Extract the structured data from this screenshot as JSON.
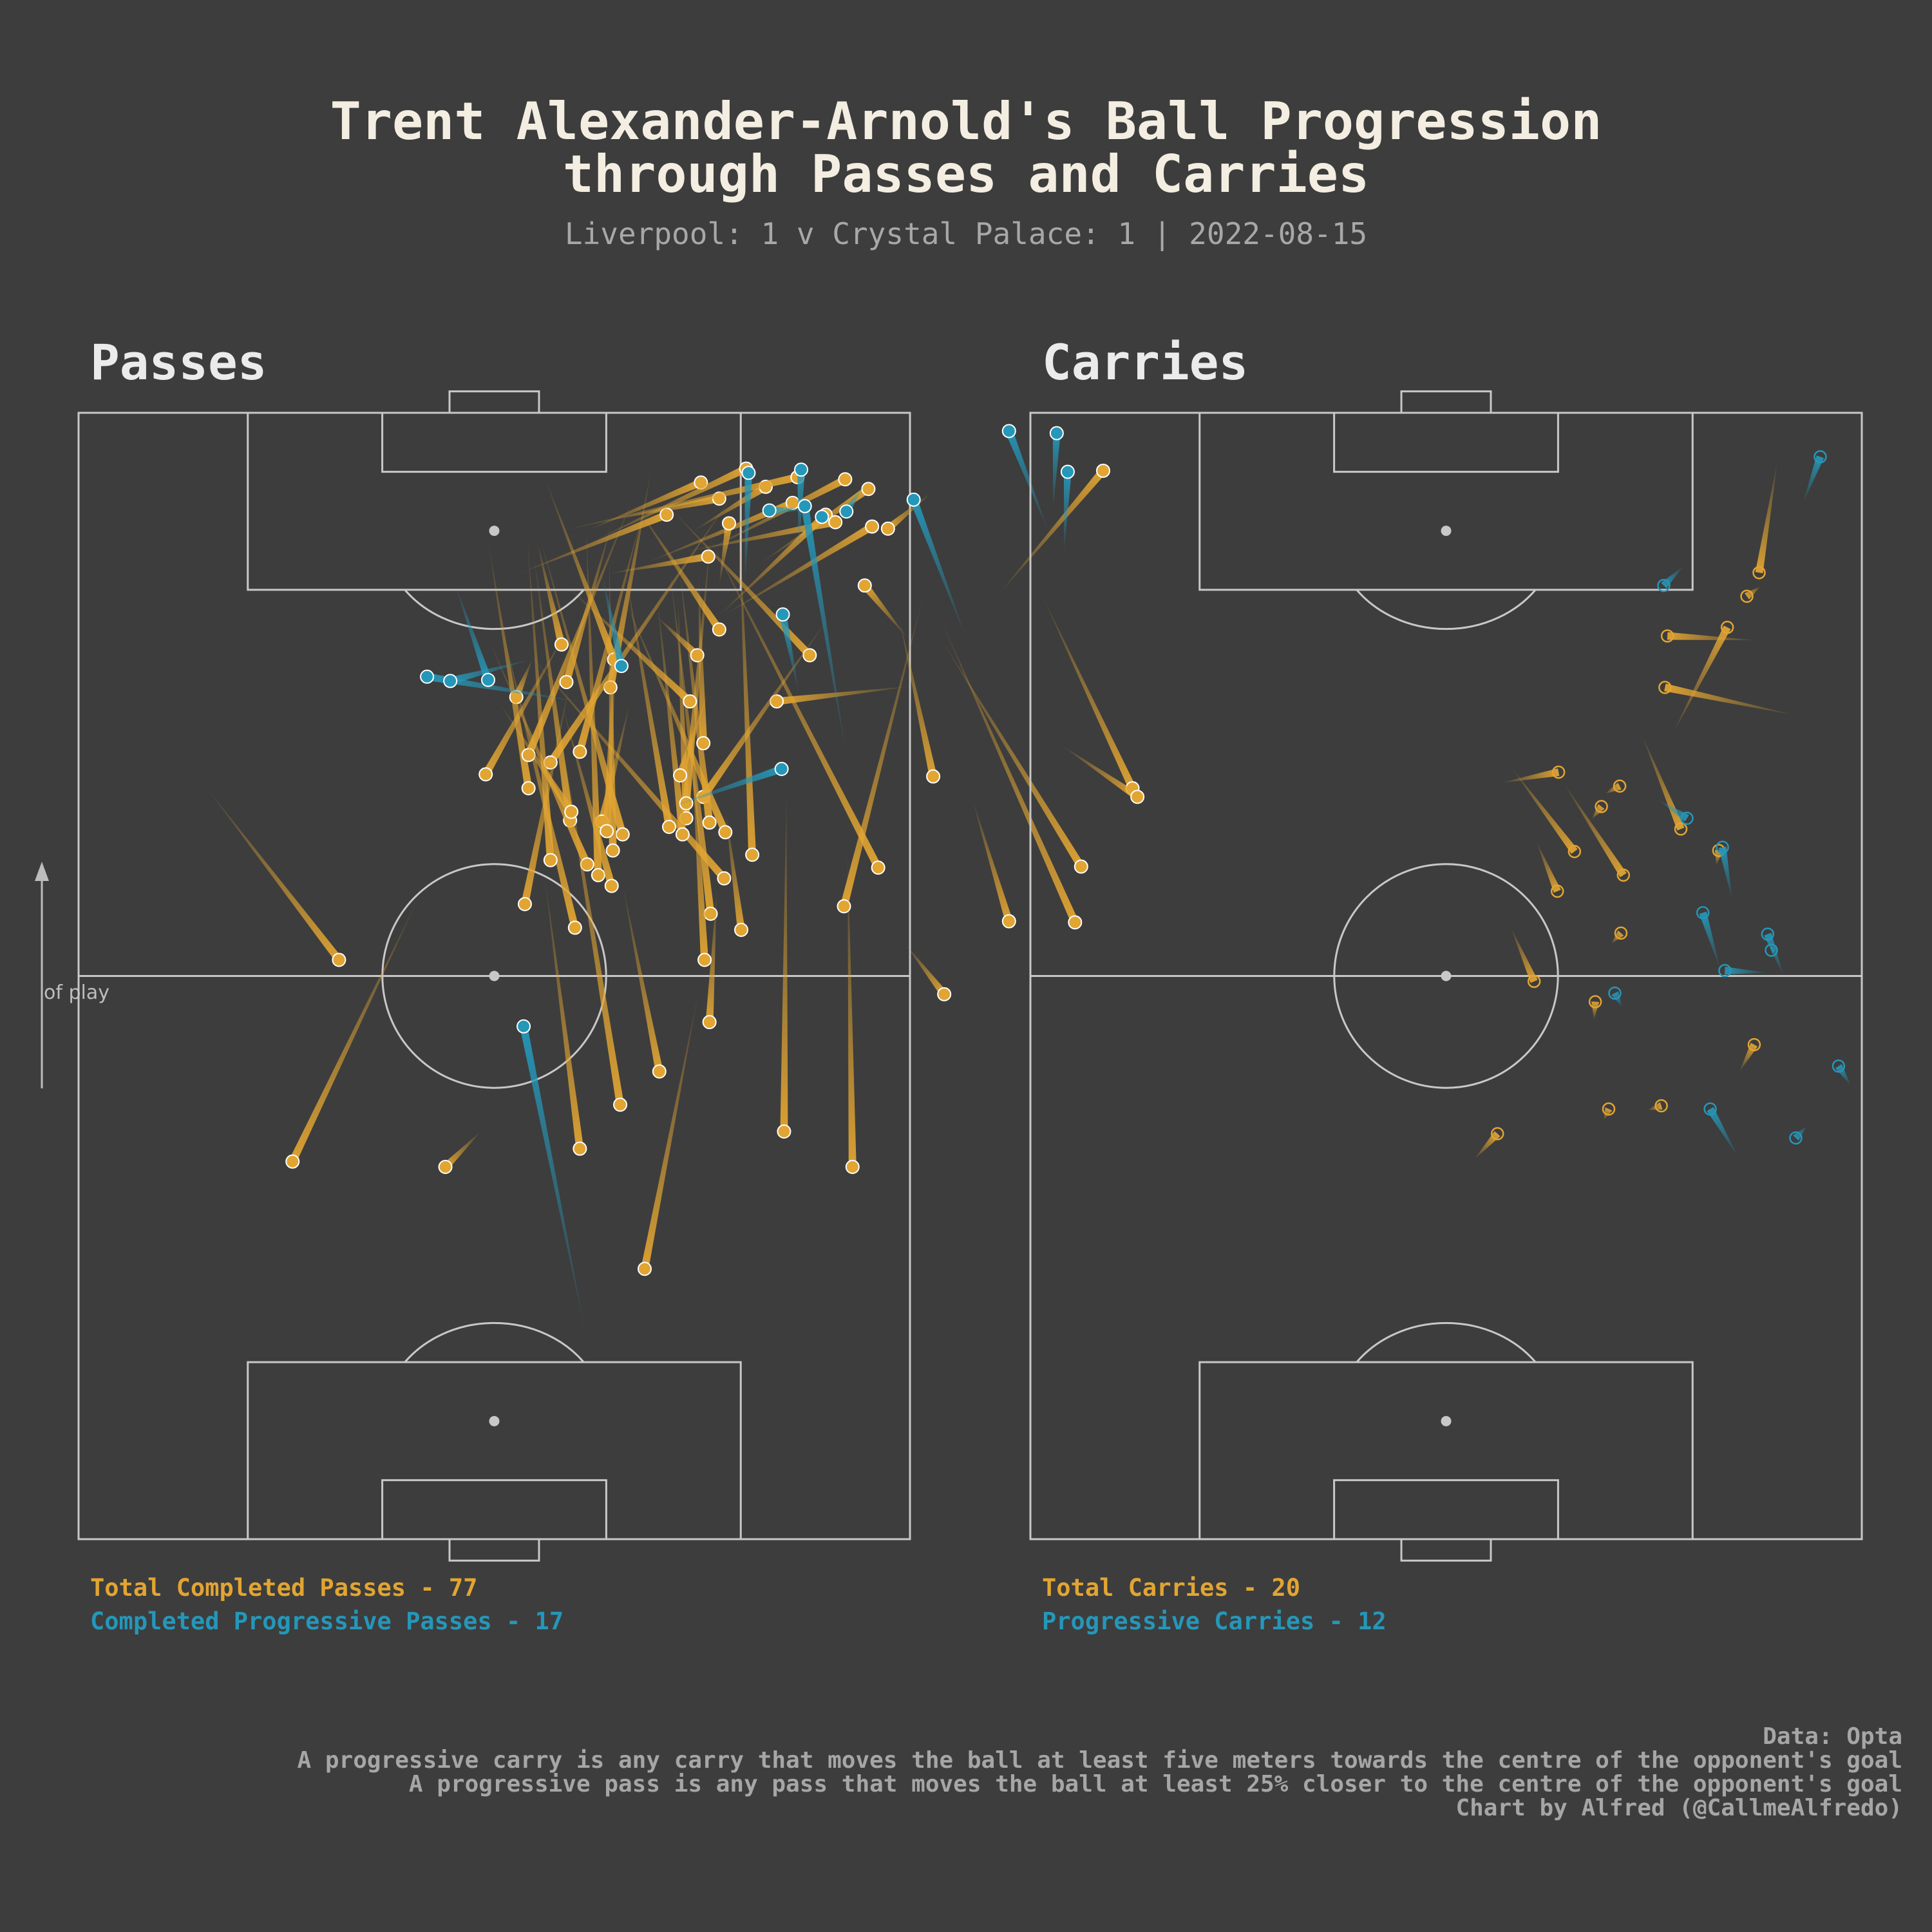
{
  "title_line1": "Trent Alexander-Arnold's Ball Progression",
  "title_line2": "through Passes and Carries",
  "subtitle": "Liverpool: 1 v Crystal Palace: 1 | 2022-08-15",
  "direction_label": "of play",
  "colors": {
    "background": "#3d3d3d",
    "total": "#e2a532",
    "progressive": "#2597b9",
    "pitch_lines": "#c8c8c8"
  },
  "passes_panel": {
    "title": "Passes",
    "total_label": "Total Completed Passes - 77",
    "progressive_label": "Completed Progressive Passes - 17"
  },
  "carries_panel": {
    "title": "Carries",
    "total_label": "Total Carries - 20",
    "progressive_label": "Progressive Carries - 12"
  },
  "footer": {
    "line1": "Data: Opta",
    "line2": "A progressive carry is any carry that moves the ball at least five meters towards the centre of the opponent's goal",
    "line3": "A progressive pass is any pass that moves the ball at least 25% closer to the centre of the opponent's goal",
    "line4": "Chart by Alfred (@CallmeAlfredo)"
  },
  "chart_data": [
    {
      "type": "scatter",
      "name": "Passes",
      "pitch": {
        "length": 105,
        "width": 68,
        "attack_direction": "up"
      },
      "series": [
        {
          "name": "Total Completed Passes",
          "color": "#e2a532",
          "segments": [
            {
              "x1": 70,
              "y1": 86.2,
              "x2": 88,
              "y2": 78.8
            },
            {
              "x1": 69.2,
              "y1": 86.6,
              "x2": 74,
              "y2": 80.4
            },
            {
              "x1": 50.8,
              "y1": 70.8,
              "x2": 55.5,
              "y2": 67.6
            },
            {
              "x1": 78.1,
              "y1": 57.1,
              "x2": 79.5,
              "y2": 68.1
            },
            {
              "x1": 59,
              "y1": 62.6,
              "x2": 88,
              "y2": 69.1
            },
            {
              "x1": 82,
              "y1": 43.8,
              "x2": 99,
              "y2": 38.1
            },
            {
              "x1": 79.4,
              "y1": 43.5,
              "x2": 100,
              "y2": 46.9
            },
            {
              "x1": 99.6,
              "y1": 83.8,
              "x2": 88,
              "y2": 75.2
            },
            {
              "x1": 78.5,
              "y1": 35.8,
              "x2": 82,
              "y2": 37.1
            },
            {
              "x1": 62.7,
              "y1": 82,
              "x2": 84,
              "y2": 70.5
            },
            {
              "x1": 57.5,
              "y1": 81.5,
              "x2": 86,
              "y2": 70.4
            },
            {
              "x1": 57.6,
              "y1": 76.1,
              "x2": 69,
              "y2": 73.1
            },
            {
              "x1": 71.1,
              "y1": 69.9,
              "x2": 86,
              "y2": 67.1
            },
            {
              "x1": 62.6,
              "y1": 65.4,
              "x2": 94.5,
              "y2": 51.1
            },
            {
              "x1": 61.6,
              "y1": 52.8,
              "x2": 83,
              "y2": 36.5
            },
            {
              "x1": 94.4,
              "y1": 64.9,
              "x2": 86,
              "y2": 52.6
            },
            {
              "x1": 88.9,
              "y1": 64.3,
              "x2": 84,
              "y2": 67.8
            },
            {
              "x1": 82.4,
              "y1": 59.8,
              "x2": 96,
              "y2": 48.5
            },
            {
              "x1": 97.9,
              "y1": 64.6,
              "x2": 91,
              "y2": 55.8
            },
            {
              "x1": 95.5,
              "y1": 61.1,
              "x2": 86,
              "y2": 52.3
            },
            {
              "x1": 98.1,
              "y1": 56.2,
              "x2": 94,
              "y2": 50.3
            },
            {
              "x1": 96.6,
              "y1": 58.4,
              "x2": 91,
              "y2": 46.4
            },
            {
              "x1": 94.8,
              "y1": 61.9,
              "x2": 92,
              "y2": 49.4
            },
            {
              "x1": 98.5,
              "y1": 50.9,
              "x2": 94,
              "y2": 41.5
            },
            {
              "x1": 97,
              "y1": 52.4,
              "x2": 95,
              "y2": 43.5
            },
            {
              "x1": 91.6,
              "y1": 51.5,
              "x2": 90,
              "y2": 43.3
            },
            {
              "x1": 84.8,
              "y1": 52.4,
              "x2": 96.5,
              "y2": 45.5
            },
            {
              "x1": 69.2,
              "y1": 51.1,
              "x2": 86,
              "y2": 61.4
            },
            {
              "x1": 63.8,
              "y1": 55.1,
              "x2": 95.5,
              "y2": 54
            },
            {
              "x1": 56.8,
              "y1": 54.2,
              "x2": 68,
              "y2": 52.9
            },
            {
              "x1": 58.3,
              "y1": 51.7,
              "x2": 91,
              "y2": 48.3
            },
            {
              "x1": 48.2,
              "y1": 51.6,
              "x2": 60.5,
              "y2": 52.2
            },
            {
              "x1": 54,
              "y1": 51.2,
              "x2": 78,
              "y2": 50
            },
            {
              "x1": 65.9,
              "y1": 52.9,
              "x2": 88,
              "y2": 44.5
            },
            {
              "x1": 66.8,
              "y1": 51.6,
              "x2": 91,
              "y2": 49.1
            },
            {
              "x1": 67.2,
              "y1": 49.7,
              "x2": 88,
              "y2": 49
            },
            {
              "x1": 66.4,
              "y1": 48.3,
              "x2": 91,
              "y2": 44.6
            },
            {
              "x1": 65.7,
              "y1": 49.4,
              "x2": 88,
              "y2": 47.3
            },
            {
              "x1": 68.6,
              "y1": 49.7,
              "x2": 93.5,
              "y2": 51.7
            },
            {
              "x1": 71.2,
              "y1": 49.2,
              "x2": 79,
              "y2": 51.5
            },
            {
              "x1": 78.1,
              "y1": 50,
              "x2": 89,
              "y2": 39.8
            },
            {
              "x1": 82.4,
              "y1": 50.6,
              "x2": 86,
              "y2": 47.3
            },
            {
              "x1": 94.7,
              "y1": 53.2,
              "x2": 89,
              "y2": 52.4
            },
            {
              "x1": 95.5,
              "y1": 48.1,
              "x2": 90,
              "y2": 36
            },
            {
              "x1": 99.8,
              "y1": 54.6,
              "x2": 93,
              "y2": 42
            },
            {
              "x1": 99,
              "y1": 58.8,
              "x2": 94,
              "y2": 39.5
            },
            {
              "x1": 65.7,
              "y1": 44.5,
              "x2": 94,
              "y2": 37.6
            },
            {
              "x1": 64.2,
              "y1": 43.7,
              "x2": 92,
              "y2": 43.4
            },
            {
              "x1": 66.9,
              "y1": 42.8,
              "x2": 78,
              "y2": 45.1
            },
            {
              "x1": 67,
              "y1": 40.2,
              "x2": 92,
              "y2": 37.2
            },
            {
              "x1": 61.9,
              "y1": 42.5,
              "x2": 95,
              "y2": 41.5
            },
            {
              "x1": 62.9,
              "y1": 41.6,
              "x2": 84,
              "y2": 33.5
            },
            {
              "x1": 60.9,
              "y1": 43.6,
              "x2": 78,
              "y2": 39.5
            },
            {
              "x1": 66,
              "y1": 43.2,
              "x2": 87,
              "y2": 44
            },
            {
              "x1": 40.5,
              "y1": 44.3,
              "x2": 78,
              "y2": 39
            },
            {
              "x1": 57,
              "y1": 40.6,
              "x2": 86,
              "y2": 34.4
            },
            {
              "x1": 70,
              "y1": 36.8,
              "x2": 93,
              "y2": 33.5
            },
            {
              "x1": 73.1,
              "y1": 36.8,
              "x2": 97.5,
              "y2": 45.5
            },
            {
              "x1": 72.4,
              "y1": 38.6,
              "x2": 98,
              "y2": 53.9
            },
            {
              "x1": 73.4,
              "y1": 41,
              "x2": 96,
              "y2": 46.2
            },
            {
              "x1": 63.3,
              "y1": 38.6,
              "x2": 93.5,
              "y2": 36.7
            },
            {
              "x1": 67.8,
              "y1": 40.3,
              "x2": 78,
              "y2": 34.4
            },
            {
              "x1": 36.4,
              "y1": 41,
              "x2": 62,
              "y2": 38.1
            },
            {
              "x1": 38,
              "y1": 57.7,
              "x2": 70,
              "y2": 57.9
            },
            {
              "x1": 34.7,
              "y1": 30,
              "x2": 38,
              "y2": 32.9
            },
            {
              "x1": 59.2,
              "y1": 36.5,
              "x2": 80,
              "y2": 40.2
            },
            {
              "x1": 34.7,
              "y1": 63.3,
              "x2": 64,
              "y2": 62.9
            },
            {
              "x1": 43.6,
              "y1": 47.5,
              "x2": 61,
              "y2": 44.5
            },
            {
              "x1": 25.2,
              "y1": 46.3,
              "x2": 51,
              "y2": 50.7
            },
            {
              "x1": 83.4,
              "y1": 39.5,
              "x2": 93,
              "y2": 37.5
            },
            {
              "x1": 79.9,
              "y1": 39.9,
              "x2": 95,
              "y2": 43.7
            },
            {
              "x1": 94.2,
              "y1": 66.2,
              "x2": 97.5,
              "y2": 69.7
            },
            {
              "x1": 35.2,
              "y1": 17.5,
              "x2": 60,
              "y2": 27.9
            },
            {
              "x1": 71.3,
              "y1": 33.3,
              "x2": 85,
              "y2": 40.1
            },
            {
              "x1": 54,
              "y1": 21.3,
              "x2": 70,
              "y2": 10.5
            },
            {
              "x1": 98.8,
              "y1": 62.7,
              "x2": 92,
              "y2": 51.1
            },
            {
              "x1": 74.2,
              "y1": 51.1,
              "x2": 90,
              "y2": 50.7
            }
          ]
        },
        {
          "name": "Completed Progressive Passes",
          "color": "#2597b9",
          "segments": [
            {
              "x1": 103.3,
              "y1": 76.1,
              "x2": 94,
              "y2": 79.3
            },
            {
              "x1": 103.1,
              "y1": 80,
              "x2": 96,
              "y2": 79.7
            },
            {
              "x1": 99.5,
              "y1": 80.9,
              "x2": 92,
              "y2": 80.6
            },
            {
              "x1": 96.9,
              "y1": 68.3,
              "x2": 84,
              "y2": 72.6
            },
            {
              "x1": 99.7,
              "y1": 59.1,
              "x2": 92,
              "y2": 58.9
            },
            {
              "x1": 99.4,
              "y1": 54.8,
              "x2": 89,
              "y2": 54.5
            },
            {
              "x1": 95.9,
              "y1": 56.5,
              "x2": 96,
              "y2": 59.7
            },
            {
              "x1": 96.3,
              "y1": 59.4,
              "x2": 73,
              "y2": 62.8
            },
            {
              "x1": 95.8,
              "y1": 62.8,
              "x2": 98,
              "y2": 64.1
            },
            {
              "x1": 95.3,
              "y1": 60.8,
              "x2": 96,
              "y2": 61.1
            },
            {
              "x1": 86.2,
              "y1": 57.6,
              "x2": 79,
              "y2": 58.9
            },
            {
              "x1": 80.4,
              "y1": 28.5,
              "x2": 78,
              "y2": 41.3
            },
            {
              "x1": 80,
              "y1": 30.4,
              "x2": 82,
              "y2": 37
            },
            {
              "x1": 81.4,
              "y1": 44.4,
              "x2": 90,
              "y2": 42.8
            },
            {
              "x1": 80.1,
              "y1": 33.5,
              "x2": 89,
              "y2": 30.8
            },
            {
              "x1": 47.8,
              "y1": 36.4,
              "x2": 19,
              "y2": 41.5
            },
            {
              "x1": 71.8,
              "y1": 57.5,
              "x2": 68,
              "y2": 47.8
            }
          ]
        }
      ]
    },
    {
      "type": "scatter",
      "name": "Carries",
      "pitch": {
        "length": 105,
        "width": 68,
        "attack_direction": "up"
      },
      "series": [
        {
          "name": "Total Carries",
          "color": "#e2a532",
          "segments": [
            {
              "x1": 90.1,
              "y1": 59.6,
              "x2": 100.5,
              "y2": 61.1
            },
            {
              "x1": 85,
              "y1": 57,
              "x2": 75,
              "y2": 52.5
            },
            {
              "x1": 84.2,
              "y1": 52.1,
              "x2": 83.8,
              "y2": 59.3
            },
            {
              "x1": 79.4,
              "y1": 51.9,
              "x2": 76.8,
              "y2": 62.6
            },
            {
              "x1": 66.2,
              "y1": 53.2,
              "x2": 75,
              "y2": 50
            },
            {
              "x1": 71.5,
              "y1": 43.2,
              "x2": 70.5,
              "y2": 38.5
            },
            {
              "x1": 64.1,
              "y1": 44.5,
              "x2": 72,
              "y2": 39.3
            },
            {
              "x1": 61.9,
              "y1": 48.5,
              "x2": 70.5,
              "y2": 43.6
            },
            {
              "x1": 60.4,
              "y1": 43.1,
              "x2": 65,
              "y2": 41.4
            },
            {
              "x1": 52,
              "y1": 41.2,
              "x2": 57,
              "y2": 39.3
            },
            {
              "x1": 37.8,
              "y1": 38.2,
              "x2": 35.4,
              "y2": 36.3
            },
            {
              "x1": 87.9,
              "y1": 58.6,
              "x2": 88.8,
              "y2": 59.7
            },
            {
              "x1": 40.4,
              "y1": 51.6,
              "x2": 40,
              "y2": 50.5
            },
            {
              "x1": 40.1,
              "y1": 47.3,
              "x2": 39.1,
              "y2": 46.9
            },
            {
              "x1": 50.1,
              "y1": 46.2,
              "x2": 48.4,
              "y2": 46.1
            },
            {
              "x1": 64.2,
              "y1": 56.3,
              "x2": 62.8,
              "y2": 56.1
            },
            {
              "x1": 70.2,
              "y1": 48.2,
              "x2": 69.5,
              "y2": 47
            },
            {
              "x1": 46.1,
              "y1": 59.2,
              "x2": 43.6,
              "y2": 58
            },
            {
              "x1": 56.5,
              "y1": 48.3,
              "x2": 55.5,
              "y2": 47.5
            },
            {
              "x1": 68.3,
              "y1": 46.7,
              "x2": 67.1,
              "y2": 45.9
            }
          ]
        },
        {
          "name": "Progressive Carries",
          "color": "#2597b9",
          "segments": [
            {
              "x1": 100.9,
              "y1": 64.6,
              "x2": 96.6,
              "y2": 63.2
            },
            {
              "x1": 88.9,
              "y1": 51.8,
              "x2": 90.7,
              "y2": 53.4
            },
            {
              "x1": 64.5,
              "y1": 56.6,
              "x2": 59.6,
              "y2": 57.4
            },
            {
              "x1": 67.2,
              "y1": 53.7,
              "x2": 68.9,
              "y2": 51.4
            },
            {
              "x1": 58.4,
              "y1": 55,
              "x2": 53.2,
              "y2": 56.4
            },
            {
              "x1": 56.4,
              "y1": 60.3,
              "x2": 52.5,
              "y2": 61.6
            },
            {
              "x1": 53,
              "y1": 56.8,
              "x2": 52.8,
              "y2": 60.3
            },
            {
              "x1": 54.9,
              "y1": 60.6,
              "x2": 55.1,
              "y2": 61.1
            },
            {
              "x1": 50.9,
              "y1": 47.8,
              "x2": 49.6,
              "y2": 48.4
            },
            {
              "x1": 40.1,
              "y1": 55.6,
              "x2": 35.6,
              "y2": 57.9
            },
            {
              "x1": 44.1,
              "y1": 66.1,
              "x2": 42.3,
              "y2": 67.1
            },
            {
              "x1": 37.4,
              "y1": 62.6,
              "x2": 38.5,
              "y2": 63.5
            }
          ]
        }
      ]
    }
  ]
}
